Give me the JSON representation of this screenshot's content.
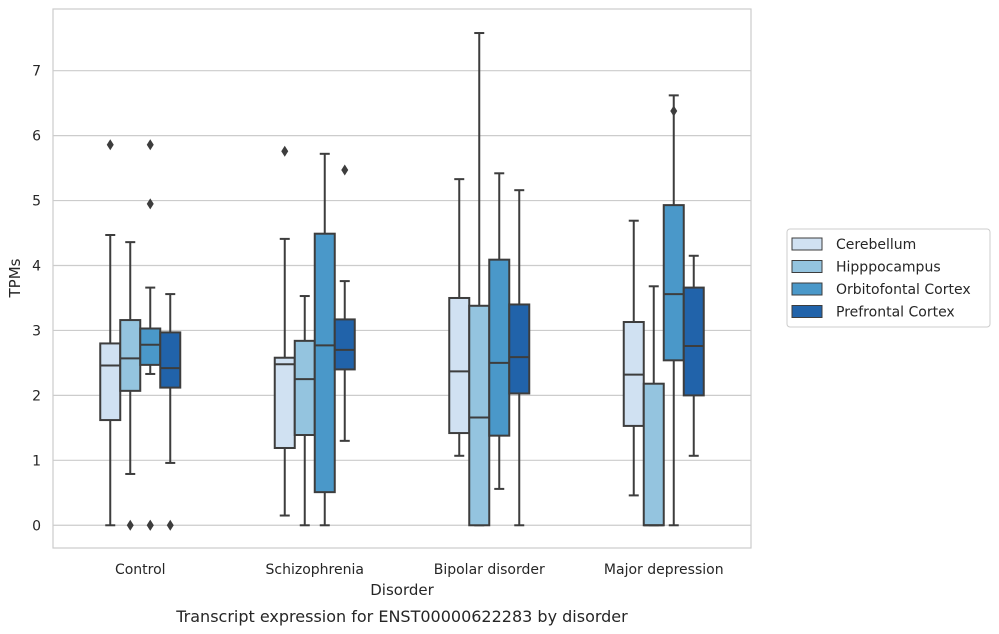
{
  "chart_data": {
    "type": "box",
    "title": "Transcript expression for ENST00000622283 by disorder",
    "xlabel": "Disorder",
    "ylabel": "TPMs",
    "ylim": [
      -0.35,
      7.95
    ],
    "yticks": [
      0,
      1,
      2,
      3,
      4,
      5,
      6,
      7
    ],
    "grid": "horizontal",
    "legend_position": "right",
    "categories": [
      "Control",
      "Schizophrenia",
      "Bipolar disorder",
      "Major depression"
    ],
    "series": [
      {
        "name": "Cerebellum",
        "color": "#d0e1f2",
        "boxes": [
          {
            "whislo": 0.0,
            "q1": 1.62,
            "med": 2.46,
            "q3": 2.8,
            "whishi": 4.47,
            "fliers": [
              5.86
            ]
          },
          {
            "whislo": 0.15,
            "q1": 1.19,
            "med": 2.48,
            "q3": 2.58,
            "whishi": 4.41,
            "fliers": [
              5.76
            ]
          },
          {
            "whislo": 1.07,
            "q1": 1.42,
            "med": 2.37,
            "q3": 3.5,
            "whishi": 5.33,
            "fliers": []
          },
          {
            "whislo": 0.46,
            "q1": 1.53,
            "med": 2.32,
            "q3": 3.13,
            "whishi": 4.69,
            "fliers": []
          }
        ]
      },
      {
        "name": "Hipppocampus",
        "color": "#94c4df",
        "boxes": [
          {
            "whislo": 0.79,
            "q1": 2.07,
            "med": 2.57,
            "q3": 3.16,
            "whishi": 4.36,
            "fliers": [
              0.0
            ]
          },
          {
            "whislo": 0.0,
            "q1": 1.39,
            "med": 2.25,
            "q3": 2.84,
            "whishi": 3.53,
            "fliers": []
          },
          {
            "whislo": 0.0,
            "q1": 0.0,
            "med": 1.66,
            "q3": 3.38,
            "whishi": 7.58,
            "fliers": []
          },
          {
            "whislo": 0.0,
            "q1": 0.0,
            "med": 0.0,
            "q3": 2.18,
            "whishi": 3.68,
            "fliers": []
          }
        ]
      },
      {
        "name": "Orbitofontal Cortex",
        "color": "#4a98c9",
        "boxes": [
          {
            "whislo": 2.33,
            "q1": 2.47,
            "med": 2.78,
            "q3": 3.03,
            "whishi": 3.66,
            "fliers": [
              5.86,
              4.95,
              0.0,
              0.0
            ]
          },
          {
            "whislo": 0.0,
            "q1": 0.51,
            "med": 2.77,
            "q3": 4.49,
            "whishi": 5.72,
            "fliers": []
          },
          {
            "whislo": 0.56,
            "q1": 1.38,
            "med": 2.5,
            "q3": 4.09,
            "whishi": 5.42,
            "fliers": []
          },
          {
            "whislo": 0.0,
            "q1": 2.54,
            "med": 3.56,
            "q3": 4.93,
            "whishi": 6.62,
            "fliers": [
              6.38
            ]
          }
        ]
      },
      {
        "name": "Prefrontal Cortex",
        "color": "#2163aa",
        "boxes": [
          {
            "whislo": 0.96,
            "q1": 2.12,
            "med": 2.42,
            "q3": 2.97,
            "whishi": 3.56,
            "fliers": [
              0.0
            ]
          },
          {
            "whislo": 1.3,
            "q1": 2.4,
            "med": 2.7,
            "q3": 3.17,
            "whishi": 3.76,
            "fliers": [
              5.47
            ]
          },
          {
            "whislo": 0.0,
            "q1": 2.03,
            "med": 2.59,
            "q3": 3.4,
            "whishi": 5.16,
            "fliers": []
          },
          {
            "whislo": 1.07,
            "q1": 2.0,
            "med": 2.76,
            "q3": 3.66,
            "whishi": 4.15,
            "fliers": []
          }
        ]
      }
    ]
  }
}
